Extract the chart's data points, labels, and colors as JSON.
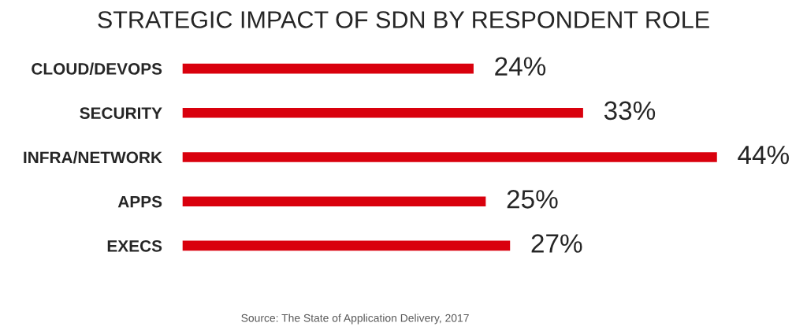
{
  "chart_data": {
    "type": "bar",
    "orientation": "horizontal",
    "title": "STRATEGIC IMPACT OF SDN BY RESPONDENT ROLE",
    "categories": [
      "CLOUD/DEVOPS",
      "SECURITY",
      "INFRA/NETWORK",
      "APPS",
      "EXECS"
    ],
    "values": [
      24,
      33,
      44,
      25,
      27
    ],
    "value_labels": [
      "24%",
      "33%",
      "44%",
      "25%",
      "27%"
    ],
    "color": "#d9000d",
    "tick_labels": "y",
    "grid": false,
    "legend": false,
    "annotations": [
      "Source: The State of Application Delivery, 2017"
    ]
  }
}
